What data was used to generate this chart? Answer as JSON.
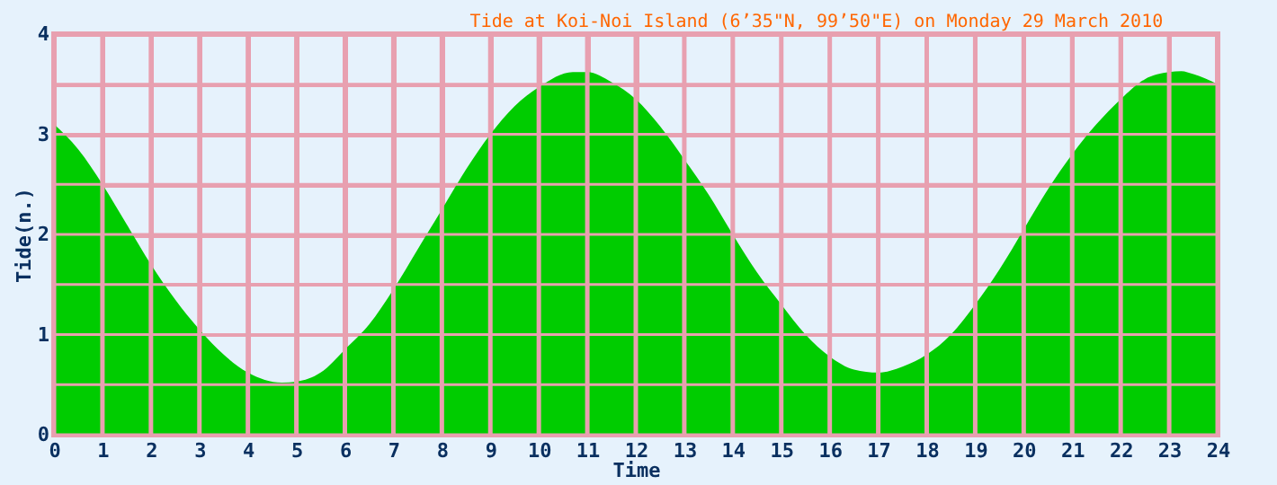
{
  "chart_data": {
    "type": "area",
    "title": "Tide at Koi-Noi Island (6’35\"N, 99’50\"E) on Monday 29 March 2010",
    "xlabel": "Time",
    "ylabel": "Tide(n.)",
    "x": [
      0,
      0.5,
      1,
      1.5,
      2,
      2.5,
      3,
      3.5,
      4,
      4.7,
      5,
      5.5,
      6,
      6.5,
      7,
      7.5,
      8,
      8.5,
      9,
      9.5,
      10,
      10.7,
      11,
      11.5,
      12,
      12.5,
      13,
      13.5,
      14,
      14.5,
      15,
      15.5,
      16,
      16.5,
      17,
      17.5,
      18,
      18.5,
      19,
      19.5,
      20,
      20.5,
      21,
      21.5,
      22,
      22.5,
      23,
      23.25,
      23.5,
      24
    ],
    "series": [
      {
        "color": "#00cc00",
        "values": [
          3.1,
          2.85,
          2.5,
          2.1,
          1.7,
          1.35,
          1.05,
          0.8,
          0.62,
          0.52,
          0.53,
          0.62,
          0.85,
          1.1,
          1.45,
          1.85,
          2.25,
          2.65,
          3.0,
          3.28,
          3.47,
          3.62,
          3.62,
          3.52,
          3.35,
          3.08,
          2.75,
          2.4,
          2.0,
          1.62,
          1.3,
          1.0,
          0.78,
          0.65,
          0.62,
          0.68,
          0.8,
          1.0,
          1.3,
          1.65,
          2.05,
          2.45,
          2.8,
          3.1,
          3.35,
          3.55,
          3.62,
          3.63,
          3.6,
          3.5
        ]
      }
    ],
    "xlim": [
      0,
      24
    ],
    "xticks": [
      0,
      1,
      2,
      3,
      4,
      5,
      6,
      7,
      8,
      9,
      10,
      11,
      12,
      13,
      14,
      15,
      16,
      17,
      18,
      19,
      20,
      21,
      22,
      23,
      24
    ],
    "ylim": [
      0,
      4
    ],
    "yticks": [
      0,
      {
        "value": 0.5,
        "label": null
      },
      1,
      {
        "value": 1.5,
        "label": null
      },
      2,
      {
        "value": 2.5,
        "label": null
      },
      3,
      {
        "value": 3.5,
        "label": null
      },
      4
    ],
    "grid": true,
    "legend": false
  }
}
